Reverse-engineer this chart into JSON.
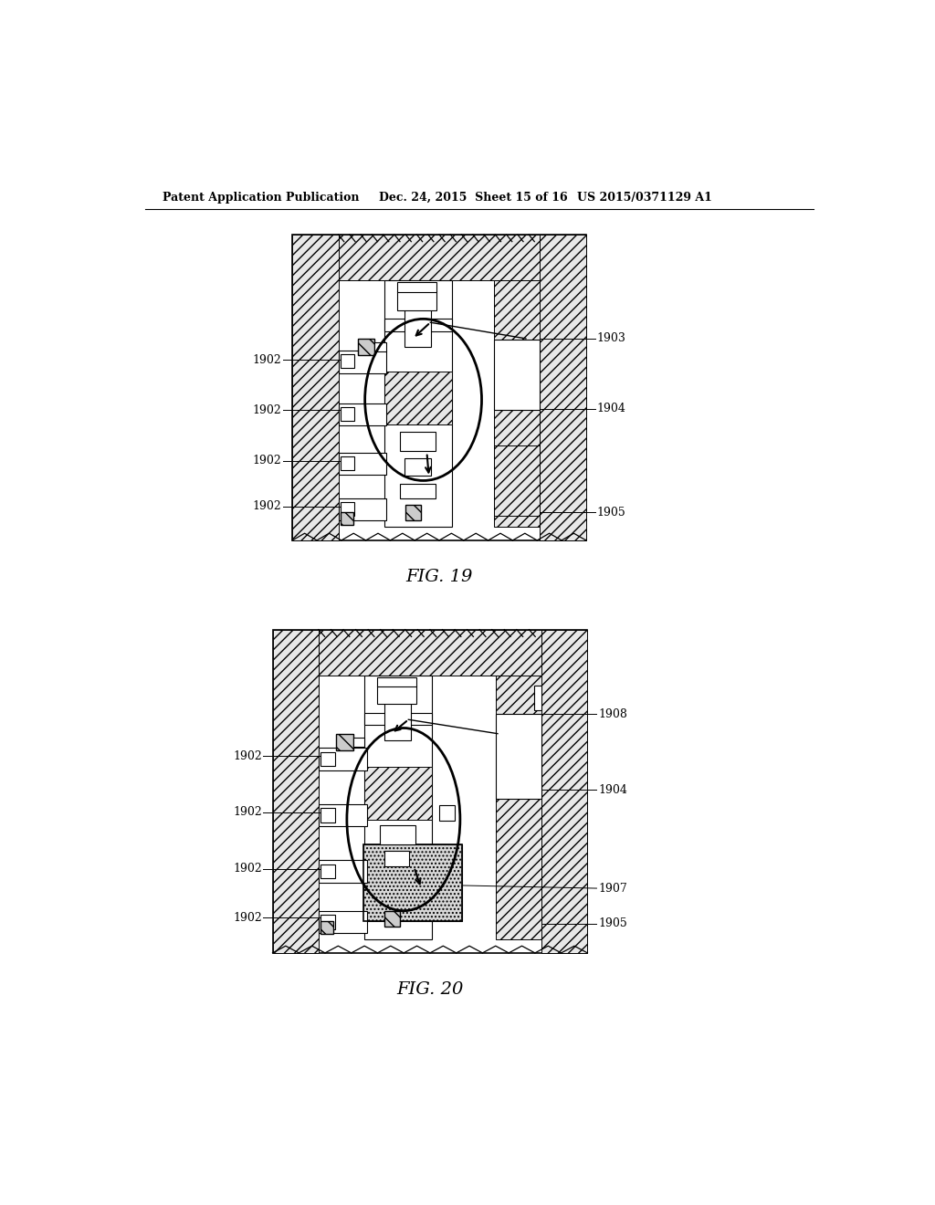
{
  "bg_color": "#ffffff",
  "header_left": "Patent Application Publication",
  "header_mid": "Dec. 24, 2015  Sheet 15 of 16",
  "header_right": "US 2015/0371129 A1",
  "fig19_caption": "FIG. 19",
  "fig20_caption": "FIG. 20"
}
